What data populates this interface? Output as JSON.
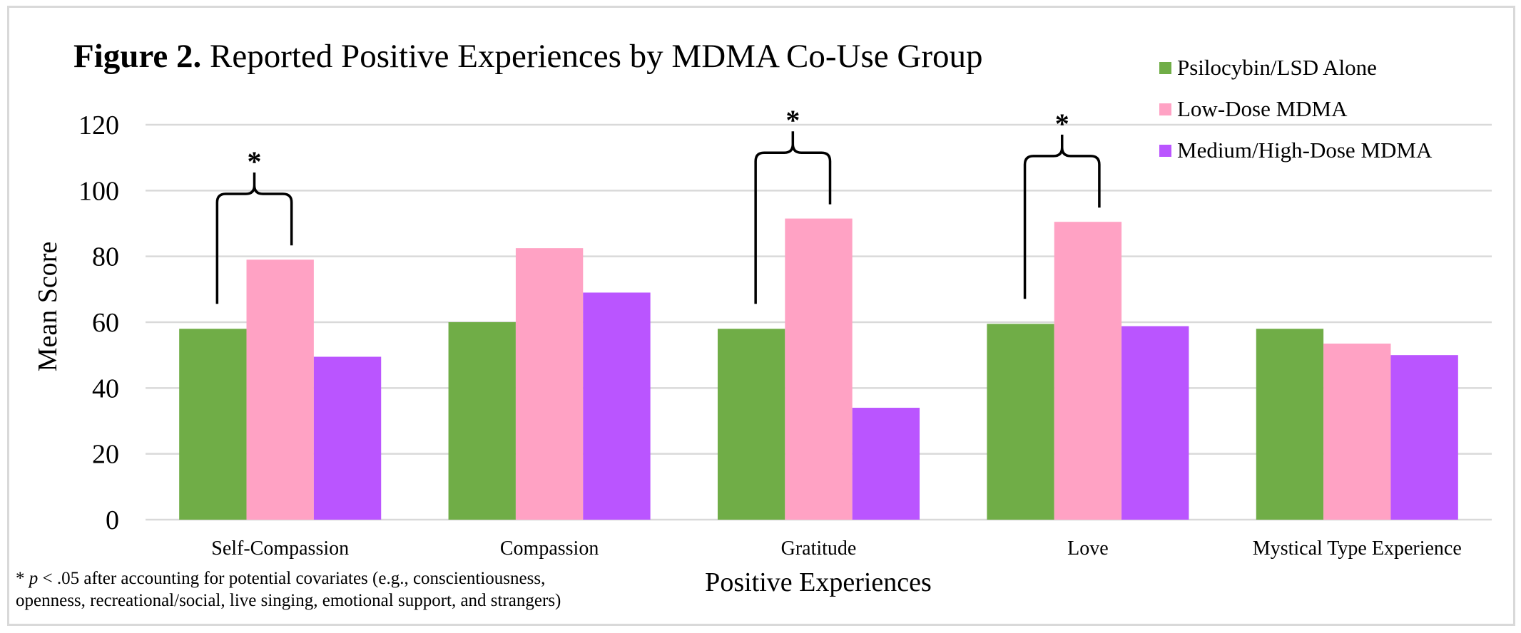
{
  "figure": {
    "title_prefix": "Figure 2.",
    "title_text": " Reported Positive Experiences by MDMA Co-Use Group",
    "footnote_star": "* ",
    "footnote_p": "p",
    "footnote_line1_rest": " < .05 after accounting for potential covariates (e.g., conscientiousness,",
    "footnote_line2": "openness, recreational/social, live singing, emotional support, and strangers)"
  },
  "chart_data": {
    "type": "bar",
    "title": "Figure 2. Reported Positive Experiences by MDMA Co-Use Group",
    "xlabel": "Positive Experiences",
    "ylabel": "Mean Score",
    "ylim": [
      0,
      120
    ],
    "yticks": [
      0,
      20,
      40,
      60,
      80,
      100,
      120
    ],
    "grid": true,
    "legend_position": "top-right",
    "categories": [
      "Self-Compassion",
      "Compassion",
      "Gratitude",
      "Love",
      "Mystical Type Experience"
    ],
    "series": [
      {
        "name": "Psilocybin/LSD Alone",
        "color": "#70AD47",
        "values": [
          58,
          60,
          58,
          59.5,
          58
        ]
      },
      {
        "name": "Low-Dose MDMA",
        "color": "#FFA2C4",
        "values": [
          79,
          82.5,
          91.5,
          90.5,
          53.5
        ]
      },
      {
        "name": "Medium/High-Dose MDMA",
        "color": "#BA55FF",
        "values": [
          49.5,
          69,
          34,
          58.8,
          50
        ]
      }
    ],
    "significance_markers": [
      {
        "category": "Self-Compassion",
        "between": [
          "Psilocybin/LSD Alone",
          "Low-Dose MDMA"
        ],
        "label": "*"
      },
      {
        "category": "Gratitude",
        "between": [
          "Psilocybin/LSD Alone",
          "Low-Dose MDMA"
        ],
        "label": "*"
      },
      {
        "category": "Love",
        "between": [
          "Psilocybin/LSD Alone",
          "Low-Dose MDMA"
        ],
        "label": "*"
      }
    ]
  }
}
